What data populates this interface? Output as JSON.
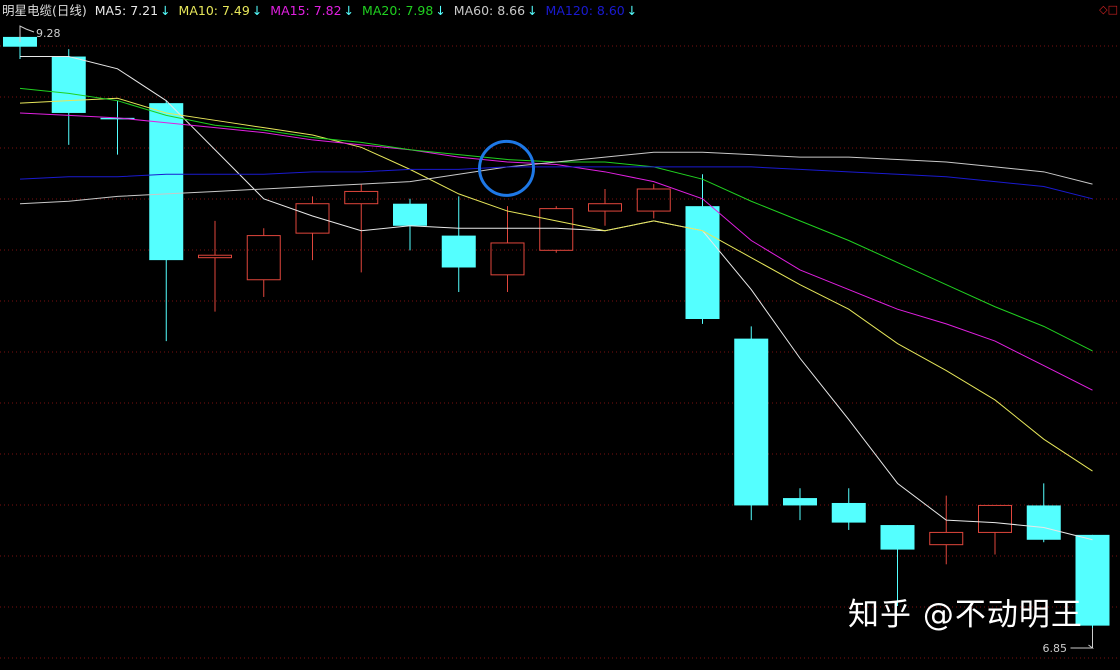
{
  "header": {
    "title": "明星电缆(日线)",
    "indicators": [
      {
        "label": "MA5: 7.21",
        "color": "#e8e8e8"
      },
      {
        "label": "MA10: 7.49",
        "color": "#e6e65a"
      },
      {
        "label": "MA15: 7.82",
        "color": "#e020e0"
      },
      {
        "label": "MA20: 7.98",
        "color": "#20d020"
      },
      {
        "label": "MA60: 8.66",
        "color": "#c8c8c8"
      },
      {
        "label": "MA120: 8.60",
        "color": "#1a1ad0"
      }
    ],
    "trend_icon": "down-arrow-icon",
    "trend_symbol": "↓",
    "corner_icons": "◇□"
  },
  "watermark": "知乎 @不动明王",
  "chart_data": {
    "type": "candlestick",
    "title": "明星电缆(日线)",
    "up_color": "#e0463c",
    "down_color": "#54ffff",
    "grid": true,
    "ylim": [
      6.8,
      9.3
    ],
    "annotations": {
      "high_label": "9.28",
      "low_label": "6.85"
    },
    "candles": [
      {
        "o": 9.26,
        "h": 9.28,
        "l": 9.17,
        "c": 9.22
      },
      {
        "o": 9.18,
        "h": 9.21,
        "l": 8.82,
        "c": 8.95
      },
      {
        "o": 8.93,
        "h": 9.0,
        "l": 8.78,
        "c": 8.93
      },
      {
        "o": 8.99,
        "h": 9.0,
        "l": 8.02,
        "c": 8.35
      },
      {
        "o": 8.36,
        "h": 8.51,
        "l": 8.14,
        "c": 8.37
      },
      {
        "o": 8.27,
        "h": 8.48,
        "l": 8.2,
        "c": 8.45
      },
      {
        "o": 8.46,
        "h": 8.61,
        "l": 8.35,
        "c": 8.58
      },
      {
        "o": 8.58,
        "h": 8.66,
        "l": 8.3,
        "c": 8.63
      },
      {
        "o": 8.58,
        "h": 8.6,
        "l": 8.39,
        "c": 8.49
      },
      {
        "o": 8.45,
        "h": 8.61,
        "l": 8.22,
        "c": 8.32
      },
      {
        "o": 8.29,
        "h": 8.57,
        "l": 8.22,
        "c": 8.42
      },
      {
        "o": 8.39,
        "h": 8.57,
        "l": 8.38,
        "c": 8.56
      },
      {
        "o": 8.55,
        "h": 8.64,
        "l": 8.49,
        "c": 8.58
      },
      {
        "o": 8.55,
        "h": 8.66,
        "l": 8.52,
        "c": 8.64
      },
      {
        "o": 8.57,
        "h": 8.7,
        "l": 8.09,
        "c": 8.11
      },
      {
        "o": 8.03,
        "h": 8.08,
        "l": 7.29,
        "c": 7.35
      },
      {
        "o": 7.38,
        "h": 7.42,
        "l": 7.29,
        "c": 7.35
      },
      {
        "o": 7.36,
        "h": 7.42,
        "l": 7.25,
        "c": 7.28
      },
      {
        "o": 7.27,
        "h": 7.27,
        "l": 6.94,
        "c": 7.17
      },
      {
        "o": 7.19,
        "h": 7.39,
        "l": 7.11,
        "c": 7.24
      },
      {
        "o": 7.24,
        "h": 7.35,
        "l": 7.15,
        "c": 7.35
      },
      {
        "o": 7.35,
        "h": 7.44,
        "l": 7.2,
        "c": 7.21
      },
      {
        "o": 7.23,
        "h": 7.23,
        "l": 6.85,
        "c": 6.86
      }
    ],
    "series": [
      {
        "name": "MA5",
        "color": "#e8e8e8",
        "values": [
          9.18,
          9.18,
          9.13,
          9.0,
          8.8,
          8.6,
          8.53,
          8.47,
          8.49,
          8.48,
          8.48,
          8.48,
          8.47,
          8.51,
          8.47,
          8.23,
          7.95,
          7.7,
          7.44,
          7.29,
          7.28,
          7.26,
          7.21
        ]
      },
      {
        "name": "MA10",
        "color": "#e6e65a",
        "values": [
          8.99,
          9.0,
          9.01,
          8.95,
          8.92,
          8.89,
          8.86,
          8.81,
          8.72,
          8.62,
          8.55,
          8.51,
          8.47,
          8.51,
          8.47,
          8.36,
          8.25,
          8.15,
          8.01,
          7.9,
          7.78,
          7.62,
          7.49
        ]
      },
      {
        "name": "MA15",
        "color": "#e020e0",
        "values": [
          8.95,
          8.94,
          8.93,
          8.91,
          8.89,
          8.87,
          8.84,
          8.82,
          8.8,
          8.77,
          8.75,
          8.74,
          8.71,
          8.67,
          8.6,
          8.43,
          8.31,
          8.23,
          8.15,
          8.09,
          8.02,
          7.92,
          7.82
        ]
      },
      {
        "name": "MA20",
        "color": "#20d020",
        "values": [
          9.05,
          9.03,
          9.0,
          8.94,
          8.9,
          8.88,
          8.85,
          8.83,
          8.8,
          8.78,
          8.76,
          8.75,
          8.75,
          8.73,
          8.68,
          8.59,
          8.51,
          8.43,
          8.34,
          8.25,
          8.16,
          8.08,
          7.98
        ]
      },
      {
        "name": "MA60",
        "color": "#c8c8c8",
        "values": [
          8.58,
          8.59,
          8.61,
          8.62,
          8.63,
          8.64,
          8.65,
          8.66,
          8.67,
          8.7,
          8.73,
          8.75,
          8.77,
          8.79,
          8.79,
          8.78,
          8.77,
          8.77,
          8.76,
          8.75,
          8.73,
          8.71,
          8.66
        ]
      },
      {
        "name": "MA120",
        "color": "#1a1ad0",
        "values": [
          8.68,
          8.69,
          8.69,
          8.7,
          8.7,
          8.7,
          8.71,
          8.71,
          8.72,
          8.72,
          8.73,
          8.73,
          8.73,
          8.73,
          8.73,
          8.73,
          8.72,
          8.71,
          8.7,
          8.69,
          8.67,
          8.65,
          8.6
        ]
      }
    ],
    "highlight": {
      "shape": "circle",
      "color": "#1e78e6",
      "candle_index": 10,
      "price": 8.72
    }
  }
}
